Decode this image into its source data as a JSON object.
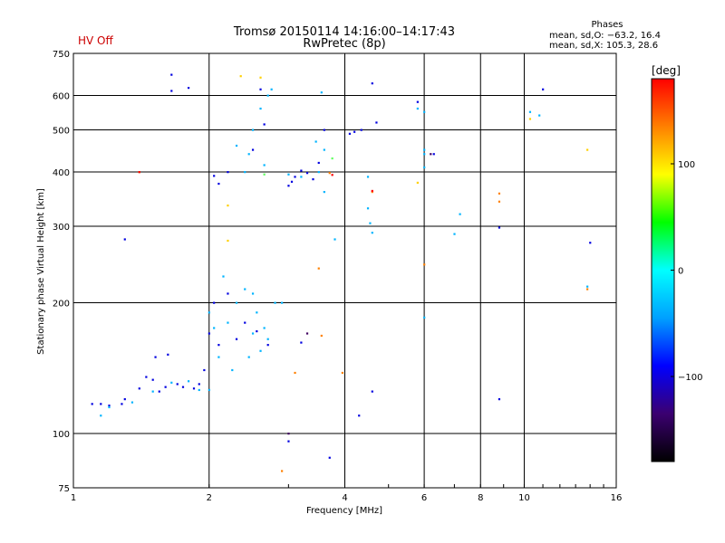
{
  "header": {
    "title_line1": "Tromsø 20150114 14:16:00–14:17:43",
    "title_line2": "RwPretec (8p)",
    "hv_status": "HV Off",
    "hv_color": "#cc0000"
  },
  "phases": {
    "title": "Phases",
    "line_o": "mean, sd,O: −63.2, 16.4",
    "line_x": "mean, sd,X: 105.3, 28.6"
  },
  "colorbar": {
    "label": "[deg]",
    "ticks": [
      "100",
      "0",
      "−100"
    ],
    "tick_values": [
      100,
      0,
      -100
    ],
    "range": [
      -180,
      180
    ],
    "colors": [
      "#000000",
      "#3b0070",
      "#0000ff",
      "#00a0ff",
      "#00ffff",
      "#00ff00",
      "#ffff00",
      "#ff8000",
      "#ff0000"
    ]
  },
  "chart_data": {
    "type": "scatter",
    "xlabel": "Frequency [MHz]",
    "ylabel": "Stationary phase Virtual Height [km]",
    "x_scale": "log",
    "y_scale": "log",
    "xlim": [
      1,
      16
    ],
    "ylim": [
      75,
      750
    ],
    "x_ticks": [
      1,
      2,
      4,
      6,
      8,
      10,
      16
    ],
    "x_tick_labels": [
      "1",
      "2",
      "4",
      "6",
      "8",
      "10",
      "16"
    ],
    "y_ticks": [
      75,
      100,
      200,
      300,
      400,
      500,
      600,
      750
    ],
    "y_tick_labels": [
      "75",
      "100",
      "200",
      "300",
      "400",
      "500",
      "600",
      "750"
    ],
    "grid": true,
    "series": [
      {
        "color": "#0000e0",
        "points": [
          [
            1.1,
            117
          ],
          [
            1.15,
            117
          ],
          [
            1.2,
            116
          ],
          [
            1.28,
            117
          ],
          [
            1.3,
            120
          ],
          [
            1.4,
            127
          ],
          [
            1.45,
            135
          ],
          [
            1.5,
            133
          ],
          [
            1.52,
            150
          ],
          [
            1.55,
            125
          ],
          [
            1.6,
            128
          ],
          [
            1.62,
            152
          ],
          [
            1.7,
            130
          ],
          [
            1.75,
            128
          ],
          [
            1.85,
            127
          ],
          [
            1.9,
            130
          ],
          [
            1.95,
            140
          ],
          [
            2.0,
            170
          ],
          [
            2.05,
            200
          ],
          [
            2.1,
            160
          ],
          [
            2.2,
            210
          ],
          [
            2.3,
            165
          ],
          [
            2.4,
            180
          ],
          [
            2.55,
            172
          ],
          [
            2.7,
            160
          ],
          [
            2.05,
            392
          ],
          [
            2.1,
            376
          ],
          [
            2.2,
            400
          ],
          [
            2.5,
            450
          ],
          [
            2.6,
            620
          ],
          [
            3.0,
            372
          ],
          [
            3.05,
            380
          ],
          [
            3.1,
            390
          ],
          [
            3.2,
            403
          ],
          [
            3.3,
            398
          ],
          [
            3.4,
            385
          ],
          [
            3.5,
            420
          ],
          [
            3.6,
            500
          ],
          [
            1.65,
            670
          ],
          [
            1.65,
            615
          ],
          [
            1.8,
            625
          ],
          [
            1.3,
            280
          ],
          [
            2.65,
            515
          ],
          [
            4.6,
            640
          ],
          [
            4.7,
            520
          ],
          [
            4.1,
            490
          ],
          [
            4.2,
            495
          ],
          [
            4.35,
            500
          ],
          [
            5.8,
            580
          ],
          [
            6.3,
            440
          ],
          [
            8.8,
            298
          ],
          [
            8.8,
            120
          ],
          [
            11,
            620
          ],
          [
            14,
            275
          ],
          [
            4.3,
            110
          ],
          [
            3.7,
            88
          ],
          [
            3.2,
            162
          ],
          [
            3.0,
            96
          ],
          [
            4.6,
            125
          ]
        ]
      },
      {
        "color": "#00b4ff",
        "points": [
          [
            1.15,
            110
          ],
          [
            1.2,
            115
          ],
          [
            1.35,
            118
          ],
          [
            1.5,
            125
          ],
          [
            1.65,
            131
          ],
          [
            1.8,
            132
          ],
          [
            1.9,
            126
          ],
          [
            2.0,
            126
          ],
          [
            2.0,
            190
          ],
          [
            2.05,
            175
          ],
          [
            2.1,
            150
          ],
          [
            2.15,
            230
          ],
          [
            2.2,
            180
          ],
          [
            2.25,
            140
          ],
          [
            2.3,
            200
          ],
          [
            2.4,
            215
          ],
          [
            2.45,
            150
          ],
          [
            2.5,
            210
          ],
          [
            2.55,
            190
          ],
          [
            2.6,
            155
          ],
          [
            2.65,
            175
          ],
          [
            2.7,
            165
          ],
          [
            2.8,
            200
          ],
          [
            2.9,
            200
          ],
          [
            2.3,
            460
          ],
          [
            2.4,
            400
          ],
          [
            2.45,
            440
          ],
          [
            2.5,
            500
          ],
          [
            2.6,
            560
          ],
          [
            2.65,
            415
          ],
          [
            2.7,
            600
          ],
          [
            2.75,
            620
          ],
          [
            3.0,
            395
          ],
          [
            3.2,
            390
          ],
          [
            3.45,
            470
          ],
          [
            3.5,
            400
          ],
          [
            3.6,
            360
          ],
          [
            3.55,
            610
          ],
          [
            3.6,
            450
          ],
          [
            4.5,
            330
          ],
          [
            4.55,
            305
          ],
          [
            4.6,
            290
          ],
          [
            4.5,
            390
          ],
          [
            6.0,
            410
          ],
          [
            5.8,
            560
          ],
          [
            6.0,
            550
          ],
          [
            6.0,
            450
          ],
          [
            6.0,
            440
          ],
          [
            7.2,
            320
          ],
          [
            7.0,
            288
          ],
          [
            6.0,
            185
          ],
          [
            10.3,
            550
          ],
          [
            10.8,
            540
          ],
          [
            13.8,
            218
          ],
          [
            3.8,
            280
          ],
          [
            2.5,
            170
          ]
        ]
      },
      {
        "color": "#ff8000",
        "points": [
          [
            1.4,
            400
          ],
          [
            3.5,
            240
          ],
          [
            3.55,
            168
          ],
          [
            3.1,
            138
          ],
          [
            3.95,
            138
          ],
          [
            6.0,
            245
          ],
          [
            4.6,
            360
          ],
          [
            8.8,
            342
          ],
          [
            8.8,
            357
          ],
          [
            13.8,
            215
          ],
          [
            2.9,
            82
          ],
          [
            3.7,
            398
          ]
        ]
      },
      {
        "color": "#ffd000",
        "points": [
          [
            2.35,
            665
          ],
          [
            2.6,
            660
          ],
          [
            2.2,
            335
          ],
          [
            2.2,
            278
          ],
          [
            5.8,
            378
          ],
          [
            13.8,
            450
          ],
          [
            10.3,
            530
          ]
        ]
      },
      {
        "color": "#ff0000",
        "points": [
          [
            3.75,
            394
          ],
          [
            4.6,
            362
          ],
          [
            1.4,
            400
          ]
        ]
      },
      {
        "color": "#60ff60",
        "points": [
          [
            3.75,
            430
          ],
          [
            2.65,
            395
          ]
        ]
      },
      {
        "color": "#400060",
        "points": [
          [
            3.3,
            170
          ],
          [
            6.2,
            440
          ],
          [
            3.0,
            100
          ]
        ]
      }
    ]
  }
}
